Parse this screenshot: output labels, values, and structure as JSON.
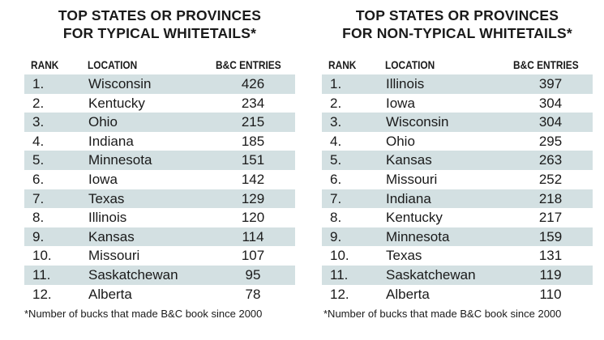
{
  "tables": [
    {
      "title": [
        "TOP STATES OR PROVINCES",
        "FOR TYPICAL WHITETAILS*"
      ],
      "columns": [
        "RANK",
        "LOCATION",
        "B&C ENTRIES"
      ],
      "rows": [
        [
          "1.",
          "Wisconsin",
          "426"
        ],
        [
          "2.",
          "Kentucky",
          "234"
        ],
        [
          "3.",
          "Ohio",
          "215"
        ],
        [
          "4.",
          "Indiana",
          "185"
        ],
        [
          "5.",
          "Minnesota",
          "151"
        ],
        [
          "6.",
          "Iowa",
          "142"
        ],
        [
          "7.",
          "Texas",
          "129"
        ],
        [
          "8.",
          "Illinois",
          "120"
        ],
        [
          "9.",
          "Kansas",
          "114"
        ],
        [
          "10.",
          "Missouri",
          "107"
        ],
        [
          "11.",
          "Saskatchewan",
          "95"
        ],
        [
          "12.",
          "Alberta",
          "78"
        ]
      ],
      "footnote": "*Number of bucks that made B&C book since 2000"
    },
    {
      "title": [
        "TOP STATES OR PROVINCES",
        "FOR NON-TYPICAL WHITETAILS*"
      ],
      "columns": [
        "RANK",
        "LOCATION",
        "B&C ENTRIES"
      ],
      "rows": [
        [
          "1.",
          "Illinois",
          "397"
        ],
        [
          "2.",
          "Iowa",
          "304"
        ],
        [
          "3.",
          "Wisconsin",
          "304"
        ],
        [
          "4.",
          "Ohio",
          "295"
        ],
        [
          "5.",
          "Kansas",
          "263"
        ],
        [
          "6.",
          "Missouri",
          "252"
        ],
        [
          "7.",
          "Indiana",
          "218"
        ],
        [
          "8.",
          "Kentucky",
          "217"
        ],
        [
          "9.",
          "Minnesota",
          "159"
        ],
        [
          "10.",
          "Texas",
          "131"
        ],
        [
          "11.",
          "Saskatchewan",
          "119"
        ],
        [
          "12.",
          "Alberta",
          "110"
        ]
      ],
      "footnote": "*Number of bucks that made B&C book since 2000"
    }
  ]
}
